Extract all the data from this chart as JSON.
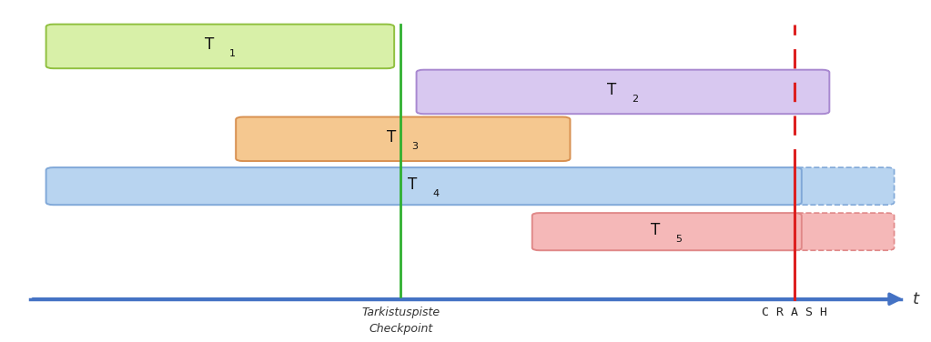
{
  "figsize": [
    10.23,
    3.76
  ],
  "dpi": 100,
  "bg_color": "#ffffff",
  "xlim": [
    0,
    10
  ],
  "ylim": [
    0,
    10
  ],
  "timeline_y": 1.2,
  "timeline_x_start": 0.3,
  "timeline_x_end": 9.75,
  "checkpoint_x": 4.3,
  "crash_x": 8.55,
  "transactions": [
    {
      "label": "T",
      "sub": "1",
      "x_start": 0.55,
      "x_end": 4.15,
      "y_center": 8.7,
      "height": 1.15,
      "facecolor": "#d8f0a8",
      "edgecolor": "#90c040",
      "dashed_right": false,
      "extend_to": null
    },
    {
      "label": "T",
      "sub": "2",
      "x_start": 4.55,
      "x_end": 8.85,
      "y_center": 7.35,
      "height": 1.15,
      "facecolor": "#d8c8f0",
      "edgecolor": "#a888d0",
      "dashed_right": false,
      "extend_to": null
    },
    {
      "label": "T",
      "sub": "3",
      "x_start": 2.6,
      "x_end": 6.05,
      "y_center": 5.95,
      "height": 1.15,
      "facecolor": "#f5c890",
      "edgecolor": "#d89050",
      "dashed_right": false,
      "extend_to": null
    },
    {
      "label": "T",
      "sub": "4",
      "x_start": 0.55,
      "x_end": 8.55,
      "y_center": 4.55,
      "height": 0.95,
      "facecolor": "#b8d4f0",
      "edgecolor": "#80a8d8",
      "dashed_right": true,
      "extend_to": 9.55
    },
    {
      "label": "T",
      "sub": "5",
      "x_start": 5.8,
      "x_end": 8.55,
      "y_center": 3.2,
      "height": 0.95,
      "facecolor": "#f5b8b8",
      "edgecolor": "#e08888",
      "dashed_right": true,
      "extend_to": 9.55
    }
  ],
  "checkpoint_label_line1": "Tarkistuspiste",
  "checkpoint_label_line2": "Checkpoint",
  "crash_label": "C R A S H",
  "timeline_label": "t",
  "arrow_color": "#4472c4",
  "checkpoint_color": "#30b030",
  "crash_solid_color": "#dd2020",
  "crash_dash_color": "#dd2020"
}
